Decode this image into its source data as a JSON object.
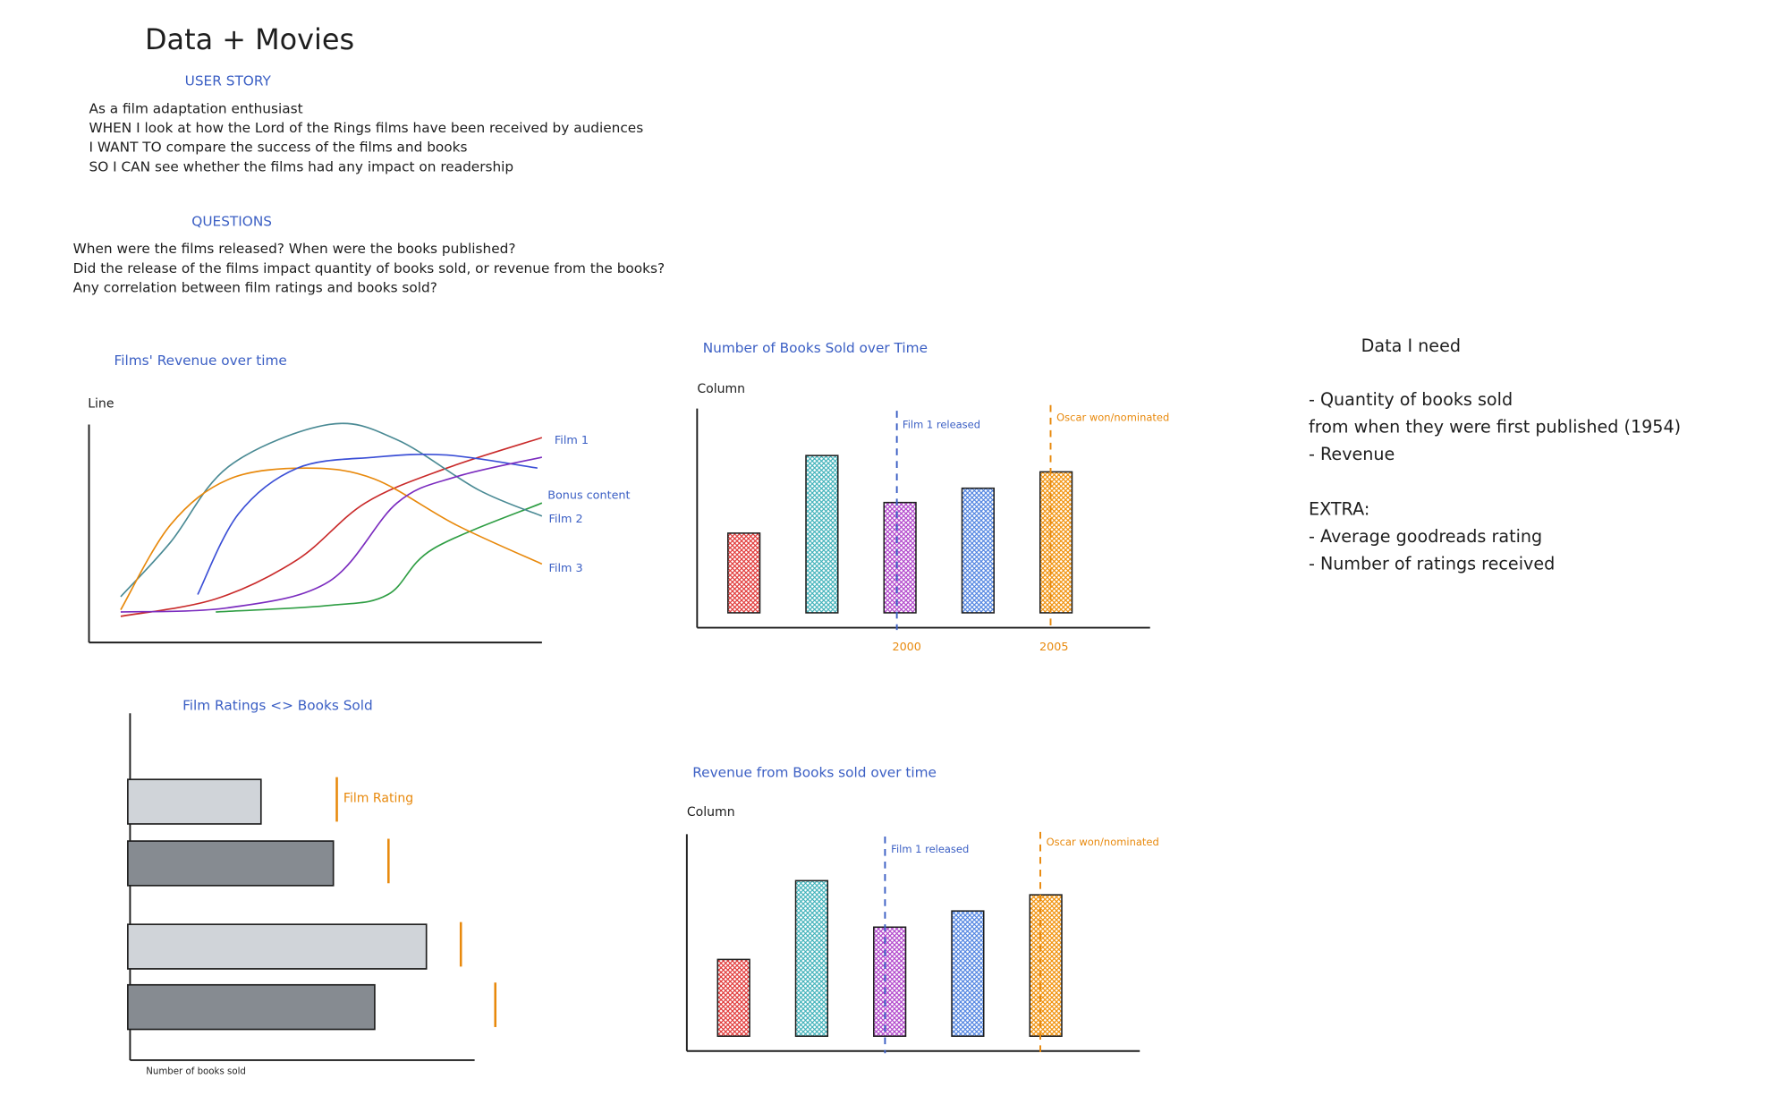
{
  "title": "Data + Movies",
  "user_story": {
    "heading": "USER STORY",
    "lines": [
      "As a film adaptation enthusiast",
      "WHEN I look at how the Lord of the Rings films have been received by audiences",
      "I WANT TO compare the success of the films and books",
      "SO I CAN see whether the films had any impact on readership"
    ]
  },
  "questions": {
    "heading": "QUESTIONS",
    "lines": [
      "When were the films released? When were the books published?",
      "Did the release of the films impact quantity of books sold, or revenue from the books?",
      "Any correlation between film ratings and books sold?"
    ]
  },
  "data_needed": {
    "heading": "Data I need",
    "lines": [
      "- Quantity of books sold",
      "from when they were first published (1954)",
      "- Revenue"
    ],
    "extra_heading": "EXTRA:",
    "extra_lines": [
      "- Average goodreads rating",
      "- Number of ratings received"
    ]
  },
  "chart_data": [
    {
      "type": "line",
      "title": "Films' Revenue over time",
      "chart_kind_label": "Line",
      "xlabel": "",
      "ylabel": "",
      "xlim": [
        0,
        100
      ],
      "ylim": [
        0,
        100
      ],
      "series": [
        {
          "label": "Film 1",
          "color": "#c92a2a",
          "points": [
            [
              7,
              12
            ],
            [
              28,
              20
            ],
            [
              46,
              38
            ],
            [
              61,
              64
            ],
            [
              79,
              80
            ],
            [
              100,
              94
            ]
          ]
        },
        {
          "label": "Bonus content",
          "color": "#2f9e44",
          "points": [
            [
              28,
              14
            ],
            [
              53,
              17
            ],
            [
              66,
              22
            ],
            [
              76,
              43
            ],
            [
              100,
              64
            ]
          ]
        },
        {
          "label": "Film 2",
          "color": "#4a8a94",
          "points": [
            [
              7,
              21
            ],
            [
              18,
              46
            ],
            [
              31,
              81
            ],
            [
              53,
              100
            ],
            [
              68,
              93
            ],
            [
              86,
              70
            ],
            [
              100,
              58
            ]
          ]
        },
        {
          "label": "Film 3",
          "color": "#e8890c",
          "points": [
            [
              7,
              15
            ],
            [
              18,
              54
            ],
            [
              31,
              75
            ],
            [
              48,
              80
            ],
            [
              63,
              75
            ],
            [
              81,
              54
            ],
            [
              100,
              36
            ]
          ]
        },
        {
          "label": "",
          "color": "#3b4fd6",
          "points": [
            [
              24,
              22
            ],
            [
              33,
              59
            ],
            [
              46,
              80
            ],
            [
              63,
              85
            ],
            [
              79,
              86
            ],
            [
              99,
              80
            ]
          ]
        },
        {
          "label": "",
          "color": "#7b2cbf",
          "points": [
            [
              7,
              14
            ],
            [
              31,
              16
            ],
            [
              53,
              28
            ],
            [
              68,
              64
            ],
            [
              81,
              76
            ],
            [
              100,
              85
            ]
          ]
        }
      ]
    },
    {
      "type": "bar",
      "title": "Number of Books Sold over Time",
      "chart_kind_label": "Column",
      "ylim": [
        0,
        100
      ],
      "values": [
        39,
        77,
        54,
        61,
        69
      ],
      "colors": [
        "#e03131",
        "#3bb0b8",
        "#ae3ec9",
        "#4a7fe0",
        "#f08c00"
      ],
      "markers": [
        {
          "label": "Film 1 released",
          "at": 1.96,
          "color": "#3b5fc4"
        },
        {
          "label": "Oscar won/nominated",
          "at": 3.93,
          "color": "#e8890c"
        }
      ],
      "xticks": [
        {
          "label": "2000",
          "at": 2.1
        },
        {
          "label": "2005",
          "at": 4.0
        }
      ]
    },
    {
      "type": "bar",
      "title": "Revenue from Books sold over time",
      "chart_kind_label": "Column",
      "ylim": [
        0,
        100
      ],
      "values": [
        38,
        77,
        54,
        62,
        70
      ],
      "colors": [
        "#e03131",
        "#3bb0b8",
        "#ae3ec9",
        "#4a7fe0",
        "#f08c00"
      ],
      "markers": [
        {
          "label": "Film 1 released",
          "at": 1.94,
          "color": "#3b5fc4"
        },
        {
          "label": "Oscar won/nominated",
          "at": 3.93,
          "color": "#e8890c"
        }
      ],
      "xticks": []
    },
    {
      "type": "bar",
      "orientation": "horizontal",
      "title": "Film Ratings <> Books Sold",
      "xlabel": "Number of books sold",
      "xlim": [
        0,
        100
      ],
      "values": [
        38,
        59,
        86,
        71
      ],
      "colors": [
        "#d0d4d9",
        "#868b91",
        "#d0d4d9",
        "#868b91"
      ],
      "ratings": [
        60,
        75,
        96,
        106
      ],
      "rating_label": "Film Rating",
      "rating_color": "#e8890c"
    }
  ]
}
